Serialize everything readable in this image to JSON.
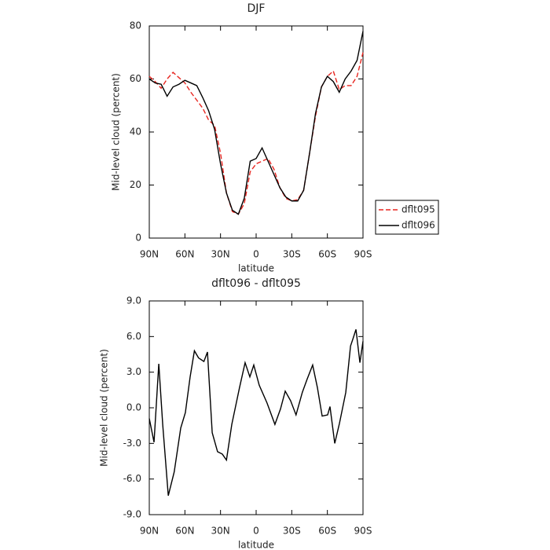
{
  "chart_data": [
    {
      "type": "line",
      "title": "DJF",
      "xlabel": "latitude",
      "ylabel": "Mid-level cloud (percent)",
      "x": [
        90,
        85,
        80,
        75,
        70,
        65,
        60,
        55,
        50,
        45,
        40,
        35,
        30,
        25,
        20,
        15,
        10,
        5,
        0,
        -5,
        -10,
        -15,
        -20,
        -25,
        -30,
        -35,
        -40,
        -45,
        -50,
        -55,
        -60,
        -65,
        -70,
        -75,
        -80,
        -85,
        -90
      ],
      "series": [
        {
          "name": "dflt095",
          "color": "#e8251f",
          "dash": true,
          "values": [
            61,
            59,
            56.5,
            60,
            62.5,
            60.5,
            58.5,
            55,
            52,
            49,
            44.5,
            42.5,
            32,
            17,
            10,
            9,
            13,
            25,
            28,
            29,
            30,
            26,
            19,
            15,
            14,
            14.5,
            18,
            32,
            46,
            57,
            61,
            63,
            56,
            57.5,
            57.5,
            61,
            70
          ]
        },
        {
          "name": "dflt096",
          "color": "#000000",
          "dash": false,
          "values": [
            60,
            58.5,
            58,
            53.5,
            57,
            58,
            59.5,
            58.5,
            57.5,
            53,
            48,
            41,
            28,
            17,
            10.5,
            9,
            15,
            29,
            30,
            34,
            29,
            24,
            19,
            15.5,
            14,
            14,
            18,
            32,
            47,
            57,
            61,
            59,
            55,
            60,
            63,
            67,
            78
          ]
        }
      ],
      "xlim": [
        90,
        -90
      ],
      "ylim": [
        0,
        80
      ],
      "xticks": [
        {
          "value": 90,
          "label": "90N"
        },
        {
          "value": 60,
          "label": "60N"
        },
        {
          "value": 30,
          "label": "30N"
        },
        0,
        {
          "value": -30,
          "label": "30S"
        },
        {
          "value": -60,
          "label": "60S"
        },
        {
          "value": -90,
          "label": "90S"
        }
      ],
      "yticks": [
        0,
        20,
        40,
        60,
        80
      ],
      "legend": "right"
    },
    {
      "type": "line",
      "title": "dflt096 - dflt095",
      "xlabel": "latitude",
      "ylabel": "Mid-level cloud (percent)",
      "x": [
        90,
        86,
        82,
        78.7,
        74,
        69,
        63.5,
        59.6,
        55.6,
        52,
        48.5,
        44,
        41,
        37,
        32.5,
        28.5,
        25,
        20.5,
        14,
        9.3,
        5.3,
        2,
        -2.6,
        -9.2,
        -15.8,
        -20.5,
        -24.5,
        -29,
        -33.6,
        -38.9,
        -42.9,
        -47.6,
        -51.6,
        -55.6,
        -60.2,
        -62.2,
        -66.2,
        -70.2,
        -75.5,
        -79.5,
        -81.5,
        -84.1,
        -87.4,
        -90
      ],
      "series": [
        {
          "color": "#000000",
          "values": [
            -0.9,
            -2.9,
            3.7,
            -1.4,
            -7.4,
            -5.4,
            -1.7,
            -0.4,
            2.6,
            4.8,
            4.2,
            3.9,
            4.7,
            -2.1,
            -3.7,
            -3.9,
            -4.4,
            -1.4,
            1.7,
            3.8,
            2.6,
            3.6,
            1.9,
            0.4,
            -1.4,
            -0.1,
            1.4,
            0.6,
            -0.6,
            1.3,
            2.4,
            3.6,
            1.7,
            -0.7,
            -0.6,
            0.1,
            -3.0,
            -1.3,
            1.3,
            5.2,
            5.8,
            6.6,
            3.8,
            5.6
          ]
        }
      ],
      "xlim": [
        90,
        -90
      ],
      "ylim": [
        -9,
        9
      ],
      "xticks": [
        {
          "value": 90,
          "label": "90N"
        },
        {
          "value": 60,
          "label": "60N"
        },
        {
          "value": 30,
          "label": "30N"
        },
        0,
        {
          "value": -30,
          "label": "30S"
        },
        {
          "value": -60,
          "label": "60S"
        },
        {
          "value": -90,
          "label": "90S"
        }
      ],
      "yticks": [
        {
          "value": 9,
          "label": "9.0"
        },
        {
          "value": 6,
          "label": "6.0"
        },
        {
          "value": 3,
          "label": "3.0"
        },
        {
          "value": 0,
          "label": "0.0"
        },
        {
          "value": -3,
          "label": "-3.0"
        },
        {
          "value": -6,
          "label": "-6.0"
        },
        {
          "value": -9,
          "label": "-9.0"
        }
      ]
    }
  ]
}
